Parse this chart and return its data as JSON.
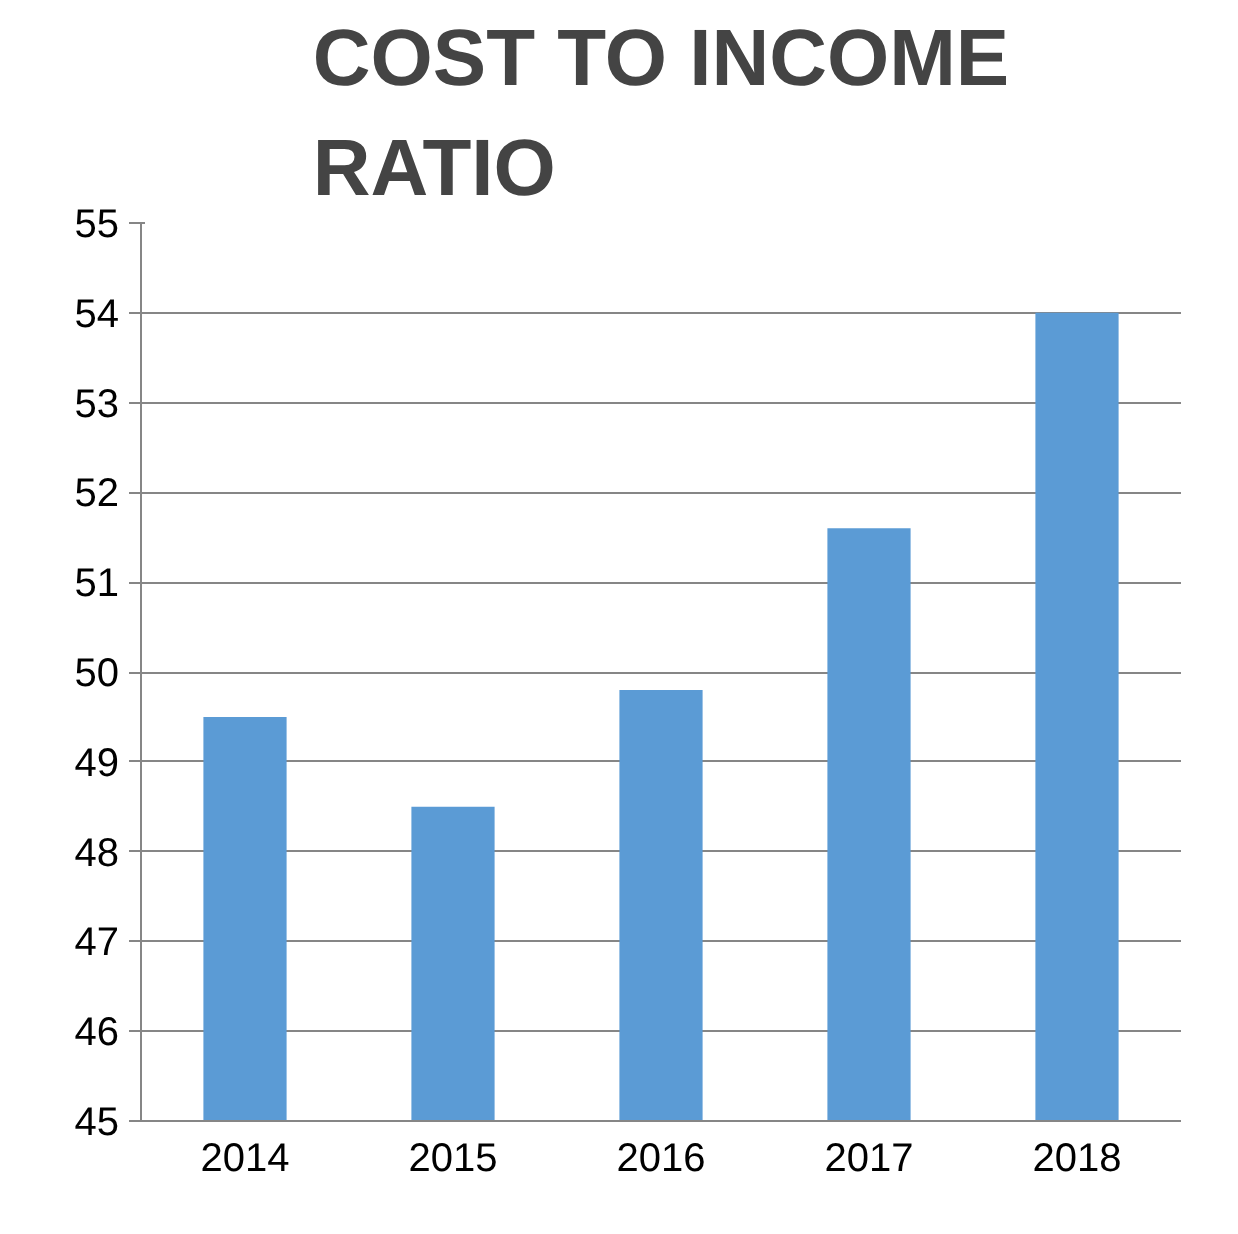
{
  "chart_data": {
    "type": "bar",
    "title": "COST TO INCOME\nRATIO",
    "categories": [
      "2014",
      "2015",
      "2016",
      "2017",
      "2018"
    ],
    "values": [
      49.5,
      48.5,
      49.8,
      51.6,
      54.0
    ],
    "color": "#5b9bd5",
    "ylim": [
      45,
      55
    ],
    "yticks": [
      45,
      46,
      47,
      48,
      49,
      50,
      51,
      52,
      53,
      54,
      55
    ],
    "grid": "y"
  }
}
